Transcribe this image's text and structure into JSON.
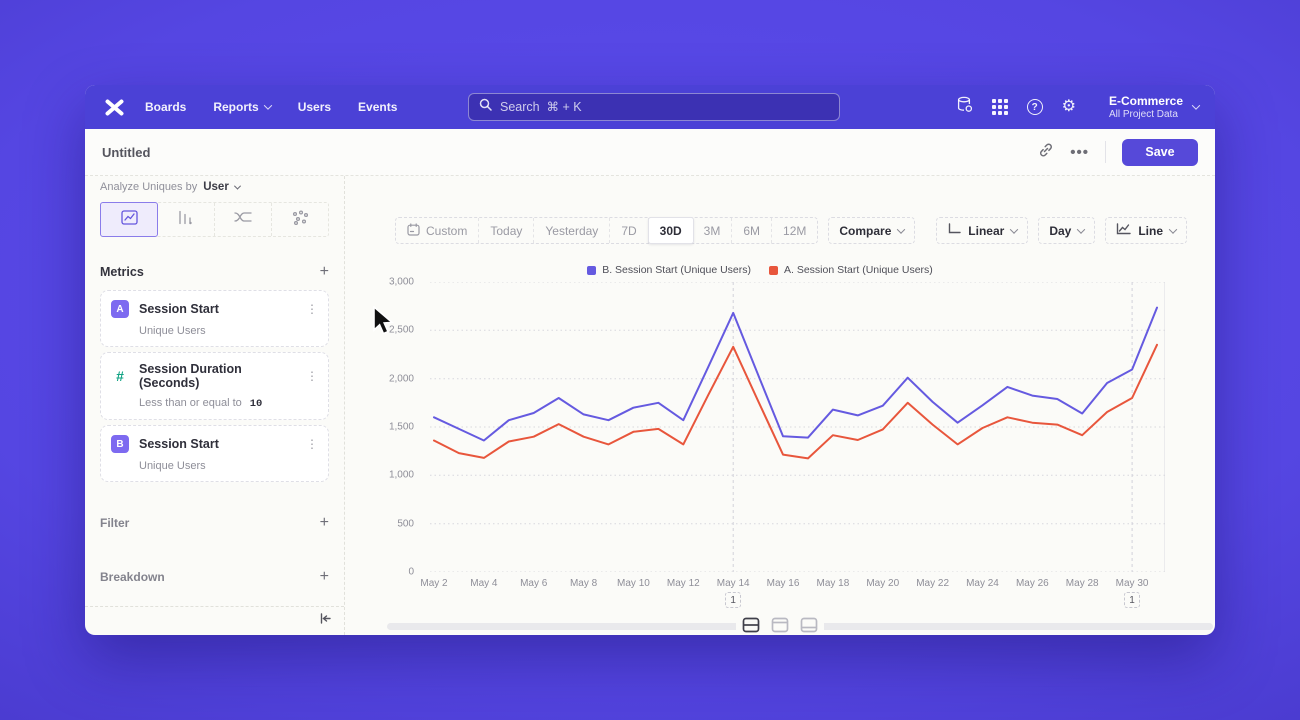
{
  "nav": {
    "items": [
      {
        "label": "Boards"
      },
      {
        "label": "Reports",
        "chevron": true
      },
      {
        "label": "Users"
      },
      {
        "label": "Events"
      }
    ],
    "search": {
      "placeholder": "Search  ⌘ + K"
    },
    "icons": [
      "data-management",
      "apps-grid",
      "help",
      "settings"
    ],
    "project": {
      "name": "E-Commerce",
      "scope": "All Project Data"
    }
  },
  "titlebar": {
    "title": "Untitled",
    "more_label": "•••",
    "save_label": "Save"
  },
  "sidebar": {
    "analyze": {
      "prefix": "Analyze Uniques by",
      "value": "User"
    },
    "chart_tabs": [
      "insights-line",
      "bars",
      "flow",
      "paths"
    ],
    "chart_tab_selected": 0,
    "metrics": {
      "header": "Metrics",
      "items": [
        {
          "badge": "A",
          "badge_type": "letter",
          "title": "Session Start",
          "subtitle": "Unique Users"
        },
        {
          "badge": "#",
          "badge_type": "hash",
          "title": "Session Duration (Seconds)",
          "subtitle": "Less than or equal to",
          "subtitle_value": "10"
        },
        {
          "badge": "B",
          "badge_type": "letter",
          "title": "Session Start",
          "subtitle": "Unique Users"
        }
      ]
    },
    "filter_label": "Filter",
    "breakdown_label": "Breakdown"
  },
  "toolbar": {
    "ranges": [
      {
        "label": "Custom",
        "icon": "calendar"
      },
      {
        "label": "Today"
      },
      {
        "label": "Yesterday"
      },
      {
        "label": "7D"
      },
      {
        "label": "30D",
        "selected": true
      },
      {
        "label": "3M"
      },
      {
        "label": "6M"
      },
      {
        "label": "12M"
      }
    ],
    "compare_label": "Compare",
    "scale": {
      "label": "Linear"
    },
    "interval": {
      "label": "Day"
    },
    "chart_type": {
      "label": "Line"
    }
  },
  "chart_data": {
    "type": "line",
    "categories": [
      "May 2",
      "May 3",
      "May 4",
      "May 5",
      "May 6",
      "May 7",
      "May 8",
      "May 9",
      "May 10",
      "May 11",
      "May 12",
      "May 13",
      "May 14",
      "May 15",
      "May 16",
      "May 17",
      "May 18",
      "May 19",
      "May 20",
      "May 21",
      "May 22",
      "May 23",
      "May 24",
      "May 25",
      "May 26",
      "May 27",
      "May 28",
      "May 29",
      "May 30",
      "May 31"
    ],
    "series": [
      {
        "name": "B. Session Start (Unique Users)",
        "color": "#655ae0",
        "values": [
          1600,
          1480,
          1360,
          1570,
          1645,
          1800,
          1630,
          1570,
          1700,
          1750,
          1570,
          2120,
          2680,
          2040,
          1405,
          1390,
          1680,
          1620,
          1720,
          2010,
          1760,
          1545,
          1725,
          1915,
          1825,
          1790,
          1640,
          1955,
          2095,
          2735
        ]
      },
      {
        "name": "A. Session Start (Unique Users)",
        "color": "#e8563c",
        "values": [
          1360,
          1230,
          1180,
          1350,
          1400,
          1530,
          1400,
          1320,
          1450,
          1480,
          1320,
          1830,
          2330,
          1770,
          1215,
          1175,
          1415,
          1365,
          1475,
          1750,
          1525,
          1320,
          1490,
          1600,
          1545,
          1525,
          1415,
          1655,
          1800,
          2350
        ]
      }
    ],
    "ylim": [
      0,
      3000
    ],
    "y_ticks": [
      0,
      500,
      1000,
      1500,
      2000,
      2500,
      3000
    ],
    "y_tick_labels": [
      "0",
      "500",
      "1,000",
      "1,500",
      "2,000",
      "2,500",
      "3,000"
    ],
    "x_tick_every": 2,
    "grid": "horizontal-dotted",
    "legend_position": "top-center",
    "annotations": [
      {
        "x_index": 12,
        "label": "1"
      },
      {
        "x_index": 28,
        "label": "1"
      }
    ]
  },
  "footer": {
    "layout_options": [
      "split-horizontal",
      "panel-top",
      "panel-bottom"
    ],
    "active": 0
  }
}
